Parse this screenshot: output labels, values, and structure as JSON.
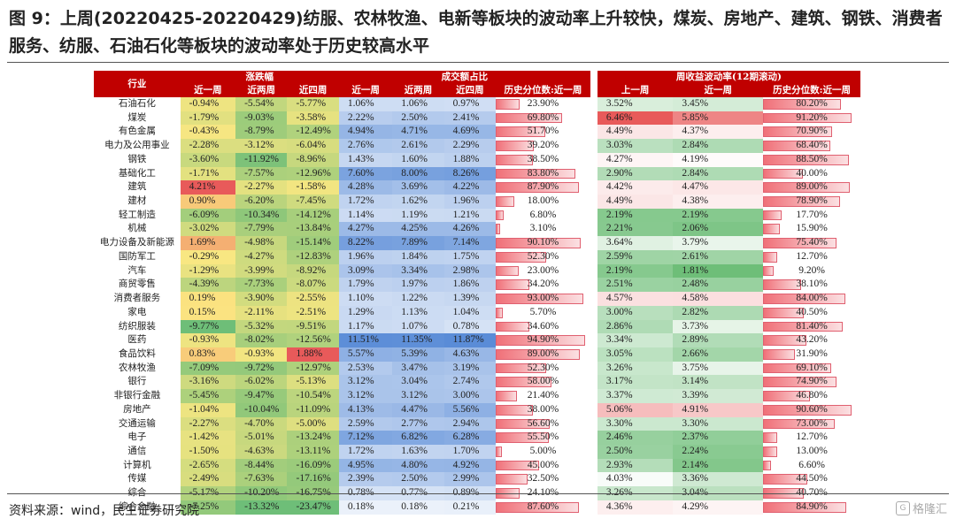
{
  "title": "图 9：上周(20220425-20220429)纺服、农林牧渔、电新等板块的波动率上升较快，煤炭、房地产、建筑、钢铁、消费者服务、纺服、石油石化等板块的波动率处于历史较高水平",
  "source": "资料来源：wind，民生证券研究院",
  "watermark": "格隆汇",
  "header": {
    "industry": "行业",
    "groups": [
      "涨跌幅",
      "成交额占比",
      "周收益波动率(12期滚动)"
    ],
    "sub_change": [
      "近一周",
      "近两周",
      "近四周"
    ],
    "sub_turnover": [
      "近一周",
      "近两周",
      "近四周",
      "历史分位数:近一周"
    ],
    "sub_vol": [
      "上一周",
      "近一周",
      "历史分位数:近一周"
    ]
  },
  "rows": [
    {
      "name": "石油石化",
      "c1": "-0.94%",
      "c2": "-5.54%",
      "c4": "-5.77%",
      "t1": "1.06%",
      "t2": "1.06%",
      "t4": "0.97%",
      "tp": "23.90%",
      "v0": "3.52%",
      "v1": "3.45%",
      "vp": "80.20%"
    },
    {
      "name": "煤炭",
      "c1": "-1.79%",
      "c2": "-9.03%",
      "c4": "-3.58%",
      "t1": "2.22%",
      "t2": "2.50%",
      "t4": "2.41%",
      "tp": "69.80%",
      "v0": "6.46%",
      "v1": "5.85%",
      "vp": "91.20%"
    },
    {
      "name": "有色金属",
      "c1": "-0.43%",
      "c2": "-8.79%",
      "c4": "-12.49%",
      "t1": "4.94%",
      "t2": "4.71%",
      "t4": "4.69%",
      "tp": "51.70%",
      "v0": "4.49%",
      "v1": "4.37%",
      "vp": "70.90%"
    },
    {
      "name": "电力及公用事业",
      "c1": "-2.28%",
      "c2": "-3.12%",
      "c4": "-6.04%",
      "t1": "2.76%",
      "t2": "2.61%",
      "t4": "2.29%",
      "tp": "39.20%",
      "v0": "3.03%",
      "v1": "2.84%",
      "vp": "68.40%"
    },
    {
      "name": "钢铁",
      "c1": "-3.60%",
      "c2": "-11.92%",
      "c4": "-8.96%",
      "t1": "1.43%",
      "t2": "1.60%",
      "t4": "1.88%",
      "tp": "38.50%",
      "v0": "4.27%",
      "v1": "4.19%",
      "vp": "88.50%"
    },
    {
      "name": "基础化工",
      "c1": "-1.71%",
      "c2": "-7.57%",
      "c4": "-12.96%",
      "t1": "7.60%",
      "t2": "8.00%",
      "t4": "8.26%",
      "tp": "83.80%",
      "v0": "2.90%",
      "v1": "2.84%",
      "vp": "40.00%"
    },
    {
      "name": "建筑",
      "c1": "4.21%",
      "c2": "-2.27%",
      "c4": "-1.58%",
      "t1": "4.28%",
      "t2": "3.69%",
      "t4": "4.22%",
      "tp": "87.90%",
      "v0": "4.42%",
      "v1": "4.47%",
      "vp": "89.00%"
    },
    {
      "name": "建材",
      "c1": "0.90%",
      "c2": "-6.20%",
      "c4": "-7.45%",
      "t1": "1.72%",
      "t2": "1.62%",
      "t4": "1.96%",
      "tp": "18.00%",
      "v0": "4.49%",
      "v1": "4.38%",
      "vp": "78.90%"
    },
    {
      "name": "轻工制造",
      "c1": "-6.09%",
      "c2": "-10.34%",
      "c4": "-14.12%",
      "t1": "1.14%",
      "t2": "1.19%",
      "t4": "1.21%",
      "tp": "6.80%",
      "v0": "2.19%",
      "v1": "2.19%",
      "vp": "17.70%"
    },
    {
      "name": "机械",
      "c1": "-3.02%",
      "c2": "-7.79%",
      "c4": "-13.84%",
      "t1": "4.27%",
      "t2": "4.25%",
      "t4": "4.26%",
      "tp": "3.10%",
      "v0": "2.21%",
      "v1": "2.06%",
      "vp": "15.90%"
    },
    {
      "name": "电力设备及新能源",
      "c1": "1.69%",
      "c2": "-4.98%",
      "c4": "-15.14%",
      "t1": "8.22%",
      "t2": "7.89%",
      "t4": "7.14%",
      "tp": "90.10%",
      "v0": "3.64%",
      "v1": "3.79%",
      "vp": "75.40%"
    },
    {
      "name": "国防军工",
      "c1": "-0.29%",
      "c2": "-4.27%",
      "c4": "-12.83%",
      "t1": "1.96%",
      "t2": "1.84%",
      "t4": "1.75%",
      "tp": "52.30%",
      "v0": "2.59%",
      "v1": "2.61%",
      "vp": "12.70%"
    },
    {
      "name": "汽车",
      "c1": "-1.29%",
      "c2": "-3.99%",
      "c4": "-8.92%",
      "t1": "3.09%",
      "t2": "3.34%",
      "t4": "2.98%",
      "tp": "23.00%",
      "v0": "2.19%",
      "v1": "1.81%",
      "vp": "9.20%"
    },
    {
      "name": "商贸零售",
      "c1": "-4.39%",
      "c2": "-7.73%",
      "c4": "-8.07%",
      "t1": "1.79%",
      "t2": "1.97%",
      "t4": "1.86%",
      "tp": "34.20%",
      "v0": "2.51%",
      "v1": "2.48%",
      "vp": "38.10%"
    },
    {
      "name": "消费者服务",
      "c1": "0.19%",
      "c2": "-3.90%",
      "c4": "-2.55%",
      "t1": "1.10%",
      "t2": "1.22%",
      "t4": "1.39%",
      "tp": "93.00%",
      "v0": "4.57%",
      "v1": "4.58%",
      "vp": "84.00%"
    },
    {
      "name": "家电",
      "c1": "0.15%",
      "c2": "-2.11%",
      "c4": "-2.51%",
      "t1": "1.29%",
      "t2": "1.13%",
      "t4": "1.04%",
      "tp": "5.70%",
      "v0": "3.00%",
      "v1": "2.82%",
      "vp": "40.50%"
    },
    {
      "name": "纺织服装",
      "c1": "-9.77%",
      "c2": "-5.32%",
      "c4": "-9.51%",
      "t1": "1.17%",
      "t2": "1.07%",
      "t4": "0.78%",
      "tp": "34.60%",
      "v0": "2.86%",
      "v1": "3.73%",
      "vp": "81.40%"
    },
    {
      "name": "医药",
      "c1": "-0.93%",
      "c2": "-8.02%",
      "c4": "-12.56%",
      "t1": "11.51%",
      "t2": "11.35%",
      "t4": "11.87%",
      "tp": "94.90%",
      "v0": "3.34%",
      "v1": "2.89%",
      "vp": "43.20%"
    },
    {
      "name": "食品饮料",
      "c1": "0.83%",
      "c2": "-0.93%",
      "c4": "1.88%",
      "t1": "5.57%",
      "t2": "5.39%",
      "t4": "4.63%",
      "tp": "89.00%",
      "v0": "3.05%",
      "v1": "2.66%",
      "vp": "31.90%"
    },
    {
      "name": "农林牧渔",
      "c1": "-7.09%",
      "c2": "-9.72%",
      "c4": "-12.97%",
      "t1": "2.53%",
      "t2": "3.47%",
      "t4": "3.19%",
      "tp": "52.30%",
      "v0": "3.26%",
      "v1": "3.75%",
      "vp": "69.10%"
    },
    {
      "name": "银行",
      "c1": "-3.16%",
      "c2": "-6.02%",
      "c4": "-5.13%",
      "t1": "3.12%",
      "t2": "3.04%",
      "t4": "2.74%",
      "tp": "58.00%",
      "v0": "3.17%",
      "v1": "3.14%",
      "vp": "74.90%"
    },
    {
      "name": "非银行金融",
      "c1": "-5.45%",
      "c2": "-9.47%",
      "c4": "-10.54%",
      "t1": "3.12%",
      "t2": "3.12%",
      "t4": "3.00%",
      "tp": "21.40%",
      "v0": "3.37%",
      "v1": "3.39%",
      "vp": "46.80%"
    },
    {
      "name": "房地产",
      "c1": "-1.04%",
      "c2": "-10.04%",
      "c4": "-11.09%",
      "t1": "4.13%",
      "t2": "4.47%",
      "t4": "5.56%",
      "tp": "38.00%",
      "v0": "5.06%",
      "v1": "4.91%",
      "vp": "90.60%"
    },
    {
      "name": "交通运输",
      "c1": "-2.27%",
      "c2": "-4.70%",
      "c4": "-5.00%",
      "t1": "2.59%",
      "t2": "2.77%",
      "t4": "2.94%",
      "tp": "56.60%",
      "v0": "3.30%",
      "v1": "3.30%",
      "vp": "73.00%"
    },
    {
      "name": "电子",
      "c1": "-1.42%",
      "c2": "-5.01%",
      "c4": "-13.24%",
      "t1": "7.12%",
      "t2": "6.82%",
      "t4": "6.28%",
      "tp": "55.50%",
      "v0": "2.46%",
      "v1": "2.37%",
      "vp": "12.70%"
    },
    {
      "name": "通信",
      "c1": "-1.50%",
      "c2": "-4.63%",
      "c4": "-13.11%",
      "t1": "1.72%",
      "t2": "1.63%",
      "t4": "1.70%",
      "tp": "5.00%",
      "v0": "2.50%",
      "v1": "2.24%",
      "vp": "13.00%"
    },
    {
      "name": "计算机",
      "c1": "-2.65%",
      "c2": "-8.44%",
      "c4": "-16.09%",
      "t1": "4.95%",
      "t2": "4.80%",
      "t4": "4.92%",
      "tp": "45.00%",
      "v0": "2.93%",
      "v1": "2.14%",
      "vp": "6.60%"
    },
    {
      "name": "传媒",
      "c1": "-2.49%",
      "c2": "-7.63%",
      "c4": "-17.16%",
      "t1": "2.39%",
      "t2": "2.50%",
      "t4": "2.99%",
      "tp": "32.50%",
      "v0": "4.03%",
      "v1": "3.36%",
      "vp": "44.50%"
    },
    {
      "name": "综合",
      "c1": "-5.17%",
      "c2": "-10.20%",
      "c4": "-16.75%",
      "t1": "0.78%",
      "t2": "0.77%",
      "t4": "0.89%",
      "tp": "24.10%",
      "v0": "3.26%",
      "v1": "3.04%",
      "vp": "40.70%"
    },
    {
      "name": "综合金融",
      "c1": "-7.25%",
      "c2": "-13.32%",
      "c4": "-23.47%",
      "t1": "0.18%",
      "t2": "0.18%",
      "t4": "0.21%",
      "tp": "87.60%",
      "v0": "4.36%",
      "v1": "4.29%",
      "vp": "84.90%"
    }
  ]
}
